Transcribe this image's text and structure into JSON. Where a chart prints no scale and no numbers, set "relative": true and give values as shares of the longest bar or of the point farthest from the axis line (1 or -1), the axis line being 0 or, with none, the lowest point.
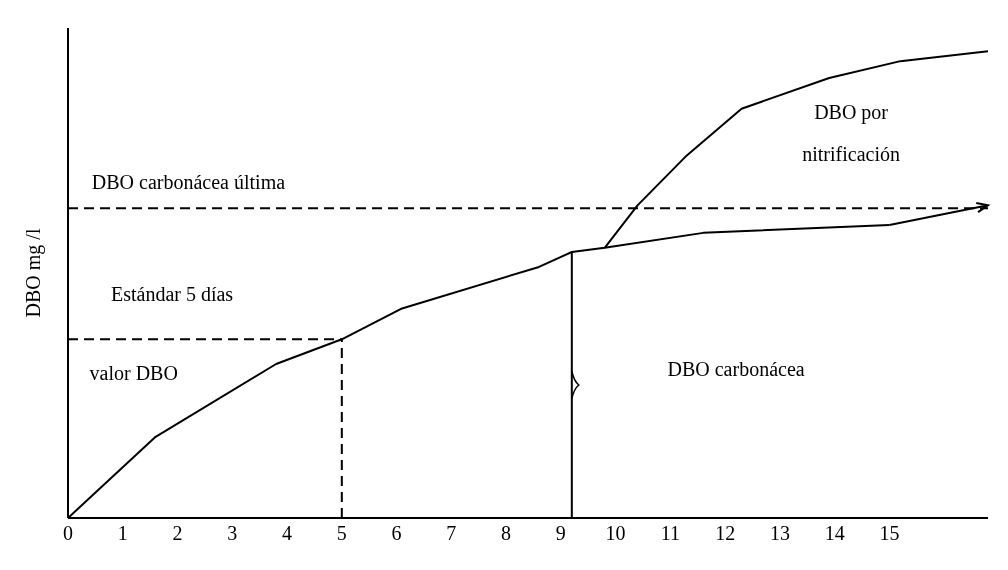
{
  "chart_data": {
    "type": "line",
    "relative": true,
    "ylabel": "DBO mg /l",
    "xlim": [
      0,
      16.8
    ],
    "xticks": [
      0,
      1,
      2,
      3,
      4,
      5,
      6,
      7,
      8,
      9,
      10,
      11,
      12,
      13,
      14,
      15
    ],
    "marker": "none",
    "series": [
      {
        "color": "#000000",
        "x": [
          0,
          1.6,
          3.8,
          5,
          6.1,
          8.6,
          9.2,
          9.8,
          11.6,
          15
        ],
        "values": [
          0,
          0.174,
          0.33,
          0.383,
          0.449,
          0.538,
          0.57,
          0.579,
          0.611,
          0.628
        ]
      },
      {
        "color": "#000000",
        "x": [
          9.8,
          10.4,
          11.3,
          12.3,
          13.9,
          15.2,
          16.8
        ],
        "values": [
          0.579,
          0.67,
          0.777,
          0.877,
          0.943,
          0.979,
          1
        ]
      },
      {
        "color": "#000000",
        "line_style": "dashed",
        "x": [
          0,
          5
        ],
        "values": [
          0.383,
          0.383
        ]
      },
      {
        "color": "#000000",
        "line_style": "dashed",
        "x": [
          5,
          5
        ],
        "values": [
          0,
          0.383
        ]
      },
      {
        "color": "#000000",
        "x": [
          9.2,
          9.2
        ],
        "values": [
          0,
          0.57
        ]
      }
    ],
    "ref_lines": [
      {
        "axis": "y",
        "value": 0.664,
        "line_style": "dashed",
        "color": "#000000"
      }
    ],
    "annotations": [
      "DBO carbonácea última",
      "Estándar 5 días",
      "valor DBO",
      "DBO carbonácea",
      "DBO por",
      "nitrificación"
    ]
  }
}
